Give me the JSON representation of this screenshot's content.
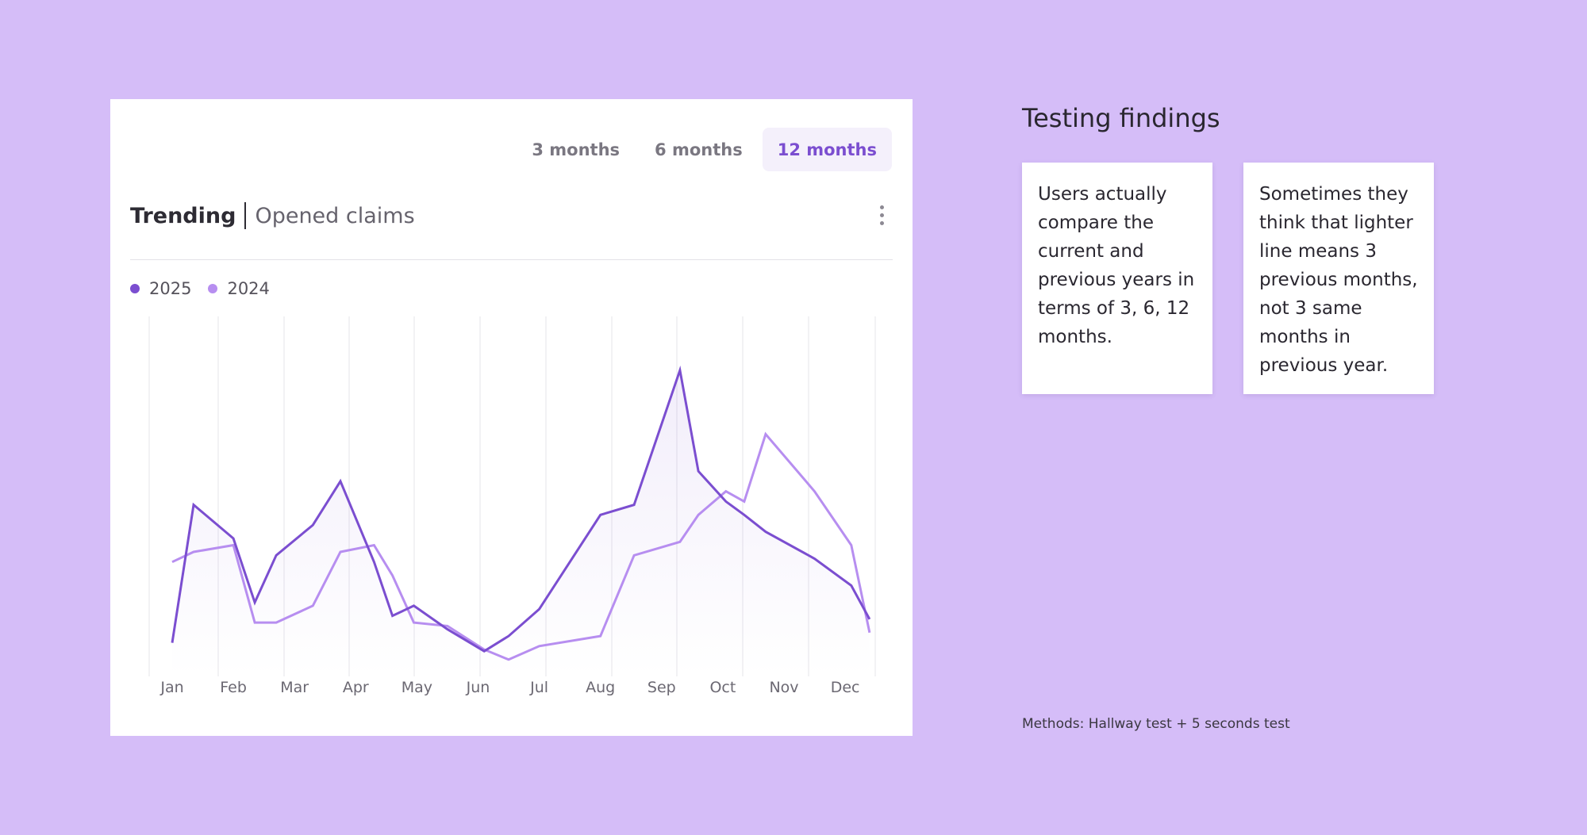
{
  "tabs": [
    {
      "label": "3 months",
      "active": false
    },
    {
      "label": "6 months",
      "active": false
    },
    {
      "label": "12 months",
      "active": true
    }
  ],
  "header": {
    "title": "Trending",
    "subtitle": "Opened claims"
  },
  "legend": [
    {
      "label": "2025",
      "color": "#7B4ED0"
    },
    {
      "label": "2024",
      "color": "#B78EF0"
    }
  ],
  "chart_data": {
    "type": "line",
    "categories": [
      "Jan",
      "Feb",
      "Mar",
      "Apr",
      "May",
      "Jun",
      "Jul",
      "Aug",
      "Sep",
      "Oct",
      "Nov",
      "Dec"
    ],
    "x": [
      0,
      0.35,
      1,
      1.35,
      1.7,
      2.3,
      2.75,
      3.3,
      3.6,
      3.95,
      4.5,
      5.1,
      5.5,
      6,
      7,
      7.55,
      8.3,
      8.6,
      9.05,
      9.35,
      9.7,
      10.5,
      11.1,
      11.4
    ],
    "series": [
      {
        "name": "2025",
        "color": "#7B4ED0",
        "fill": true,
        "values": [
          10,
          51,
          41,
          22,
          36,
          45,
          58,
          34,
          18,
          21,
          14,
          7.5,
          12,
          20,
          48,
          51,
          91,
          61,
          52,
          48,
          43,
          35,
          27,
          17
        ]
      },
      {
        "name": "2024",
        "color": "#B78EF0",
        "fill": false,
        "values": [
          34,
          37,
          39,
          16,
          16,
          21,
          37,
          39,
          30,
          16,
          15,
          8,
          5,
          9,
          12,
          36,
          40,
          48,
          55,
          52,
          72,
          55,
          39,
          13
        ]
      }
    ],
    "ylim": [
      0,
      107
    ]
  },
  "findings": {
    "title": "Testing findings",
    "notes": [
      "Users actually compare the current and previous years in terms of 3, 6, 12 months.",
      "Sometimes they think that lighter line means 3 previous months, not 3 same months in previous year."
    ],
    "methods": "Methods: Hallway test + 5 seconds test"
  }
}
